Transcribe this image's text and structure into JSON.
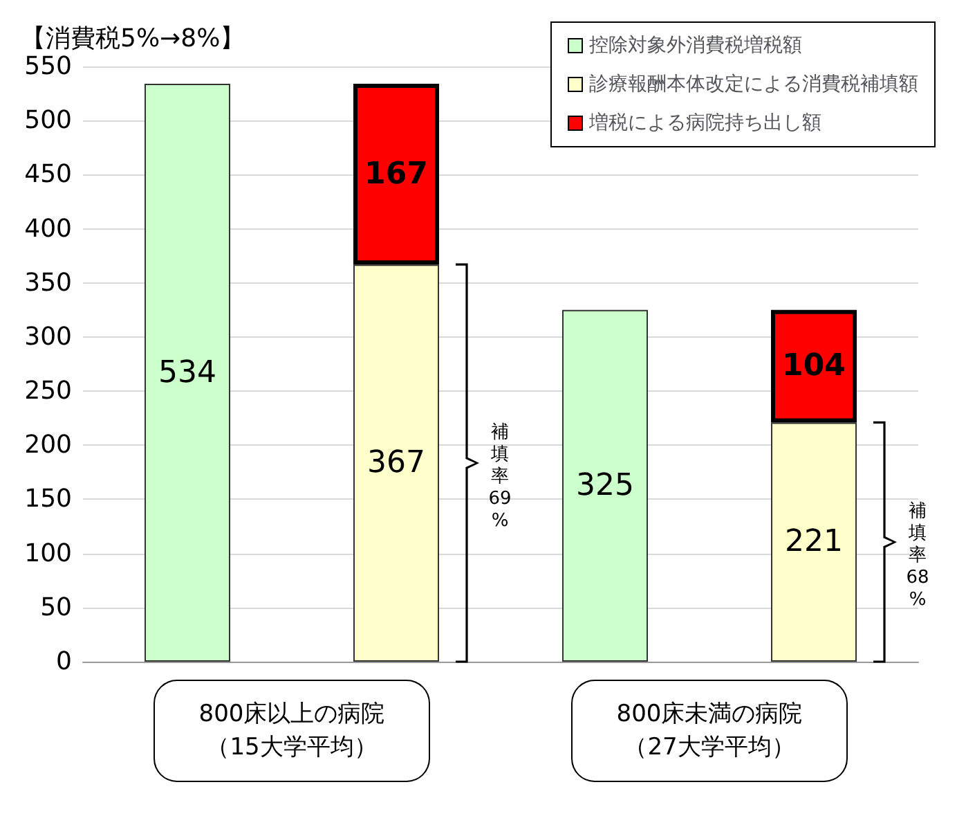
{
  "chart_data": {
    "type": "bar",
    "title": "【消費税5%→8%】",
    "categories": [
      "800床以上の病院（15大学平均）",
      null,
      "800床未満の病院（27大学平均）",
      null
    ],
    "series": [
      {
        "name": "控除対象外消費税増税額",
        "color": "#ccffcc",
        "values": [
          534,
          null,
          325,
          null
        ]
      },
      {
        "name": "診療報酬本体改定による消費税補填額",
        "color": "#ffffcc",
        "values": [
          null,
          367,
          null,
          221
        ]
      },
      {
        "name": "増税による病院持ち出し額",
        "color": "#ff0000",
        "values": [
          null,
          167,
          null,
          104
        ]
      }
    ],
    "stacked": true,
    "data_labels": true,
    "ylim": [
      0,
      550
    ],
    "yticks": [
      0,
      50,
      100,
      150,
      200,
      250,
      300,
      350,
      400,
      450,
      500,
      550
    ],
    "grid": "y",
    "legend": "top right",
    "annotations": [
      "補填率69%",
      "補填率68%"
    ]
  }
}
